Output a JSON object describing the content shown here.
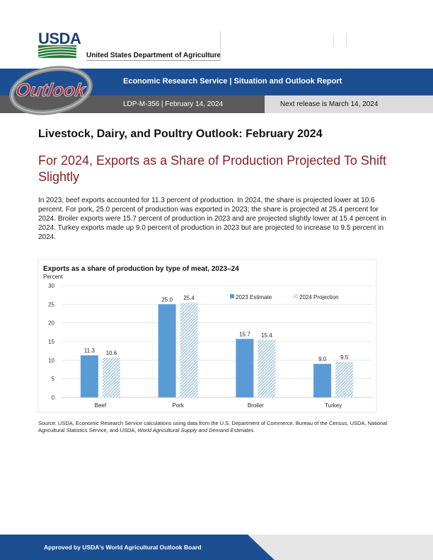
{
  "header": {
    "logo_text": "USDA",
    "department": "United States Department of Agriculture",
    "banner_title": "Economic Research Service | Situation and Outlook Report",
    "report_line": "LDP-M-356  |  February 14, 2024",
    "next_release": "Next release is March 14, 2024",
    "outlook_logo_text": "Outlook"
  },
  "article": {
    "title": "Livestock, Dairy, and Poultry Outlook: February 2024",
    "subtitle": "For 2024, Exports as a Share of Production Projected To Shift Slightly",
    "body": "In 2023, beef exports accounted for 11.3 percent of production. In 2024, the share is projected lower at 10.6 percent. For pork, 25.0 percent of production was exported in 2023; the share is projected at 25.4 percent for 2024. Broiler exports were 15.7 percent of production in 2023 and are projected slightly lower at 15.4 percent in 2024. Turkey exports made up 9.0 percent of production in 2023 but are projected to increase to 9.5 percent in 2024."
  },
  "chart_data": {
    "type": "bar",
    "title": "Exports as a share of production by type of meat, 2023–24",
    "ylabel": "Percent",
    "xlabel": "",
    "ylim": [
      0,
      30
    ],
    "yticks": [
      0,
      5,
      10,
      15,
      20,
      25,
      30
    ],
    "categories": [
      "Beef",
      "Pork",
      "Broiler",
      "Turkey"
    ],
    "series": [
      {
        "name": "2023 Estimate",
        "values": [
          11.3,
          25.0,
          15.7,
          9.0
        ],
        "labels": [
          "11.3",
          "25.0",
          "15.7",
          "9.0"
        ],
        "color": "#5b9bd5",
        "pattern": "solid"
      },
      {
        "name": "2024 Projection",
        "values": [
          10.6,
          25.4,
          15.4,
          9.5
        ],
        "labels": [
          "10.6",
          "25.4",
          "15.4",
          "9.5"
        ],
        "color": "#5b9bd5",
        "pattern": "hatched"
      }
    ],
    "grid": true,
    "legend": "top-right"
  },
  "source": {
    "prefix": "Source: USDA, Economic Research Service calculations using data from the U.S. Department of Commerce, Bureau of the Census, USDA, National Agricultural Statistics Service, and USDA, ",
    "italic": "World Agricultural Supply and Demand Estimates."
  },
  "footer": {
    "text": "Approved by USDA's World Agricultural Outlook Board"
  },
  "colors": {
    "usda_blue": "#1f3f73",
    "usda_green": "#2a7a3b",
    "banner_blue": "#1c4f91",
    "subtitle_red": "#8b1c1c",
    "bar_blue": "#5b9bd5",
    "outlook_red": "#c0392b"
  }
}
